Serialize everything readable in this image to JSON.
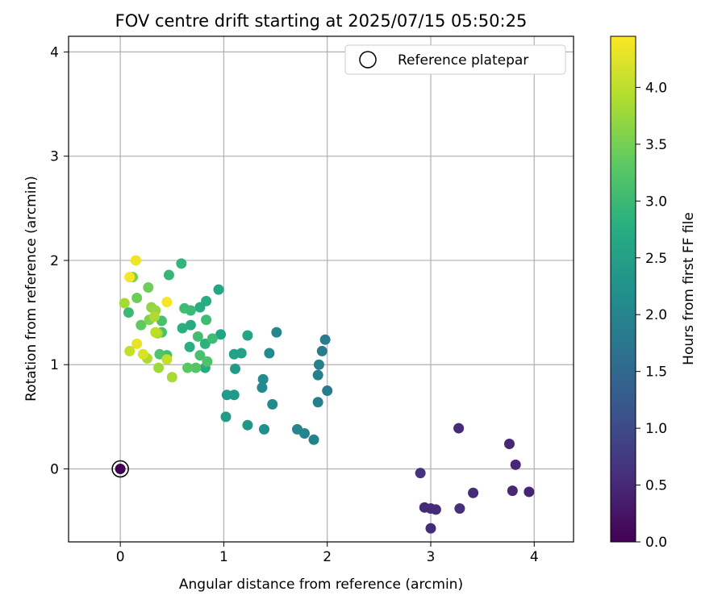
{
  "chart_data": {
    "type": "scatter",
    "title": "FOV centre drift starting at 2025/07/15 05:50:25",
    "xlabel": "Angular distance from reference (arcmin)",
    "ylabel": "Rotation from reference (arcmin)",
    "xlim": [
      -0.5,
      4.38
    ],
    "ylim": [
      -0.7,
      4.15
    ],
    "xticks": [
      0,
      1,
      2,
      3,
      4
    ],
    "yticks": [
      0,
      1,
      2,
      3,
      4
    ],
    "grid": true,
    "legend": {
      "placement": "top-right",
      "entries": [
        "Reference platepar"
      ]
    },
    "colorbar": {
      "label": "Hours from first FF file",
      "colormap": "viridis",
      "range": [
        0.0,
        4.45
      ],
      "ticks": [
        "0.0",
        "0.5",
        "1.0",
        "1.5",
        "2.0",
        "2.5",
        "3.0",
        "3.5",
        "4.0"
      ]
    },
    "reference_point": {
      "x": 0.0,
      "y": 0.0,
      "color": "#440154"
    },
    "series": [
      {
        "points": [
          [
            3.27,
            0.39,
            0.55
          ],
          [
            3.76,
            0.24,
            0.5
          ],
          [
            3.82,
            0.04,
            0.5
          ],
          [
            2.9,
            -0.04,
            0.65
          ],
          [
            3.41,
            -0.23,
            0.55
          ],
          [
            3.79,
            -0.21,
            0.5
          ],
          [
            3.95,
            -0.22,
            0.45
          ],
          [
            2.94,
            -0.37,
            0.55
          ],
          [
            3.0,
            -0.38,
            0.55
          ],
          [
            3.05,
            -0.39,
            0.55
          ],
          [
            3.28,
            -0.38,
            0.6
          ],
          [
            3.0,
            -0.57,
            0.55
          ],
          [
            1.98,
            1.24,
            1.85
          ],
          [
            1.95,
            1.13,
            1.85
          ],
          [
            1.92,
            1.0,
            1.9
          ],
          [
            1.91,
            0.9,
            1.9
          ],
          [
            2.0,
            0.75,
            1.85
          ],
          [
            1.91,
            0.64,
            1.9
          ],
          [
            1.87,
            0.28,
            1.95
          ],
          [
            1.78,
            0.34,
            2.0
          ],
          [
            1.71,
            0.38,
            2.0
          ],
          [
            1.51,
            1.31,
            2.05
          ],
          [
            1.44,
            1.11,
            2.1
          ],
          [
            1.38,
            0.86,
            2.1
          ],
          [
            1.37,
            0.78,
            2.1
          ],
          [
            1.47,
            0.62,
            2.15
          ],
          [
            1.39,
            0.38,
            2.2
          ],
          [
            1.23,
            0.42,
            2.35
          ],
          [
            1.02,
            0.5,
            2.45
          ],
          [
            1.03,
            0.71,
            2.45
          ],
          [
            1.1,
            0.71,
            2.4
          ],
          [
            1.11,
            0.96,
            2.45
          ],
          [
            1.1,
            1.1,
            2.55
          ],
          [
            1.17,
            1.11,
            2.55
          ],
          [
            1.23,
            1.28,
            2.6
          ],
          [
            0.97,
            1.29,
            2.6
          ],
          [
            0.95,
            1.72,
            2.65
          ],
          [
            0.83,
            1.61,
            2.75
          ],
          [
            0.77,
            1.55,
            2.75
          ],
          [
            0.68,
            1.38,
            2.7
          ],
          [
            0.6,
            1.35,
            2.8
          ],
          [
            0.59,
            1.97,
            2.9
          ],
          [
            0.47,
            1.86,
            2.95
          ],
          [
            0.67,
            1.17,
            2.8
          ],
          [
            0.82,
            0.97,
            2.75
          ],
          [
            0.82,
            1.2,
            2.85
          ],
          [
            0.89,
            1.25,
            3.05
          ],
          [
            0.83,
            1.43,
            3.05
          ],
          [
            0.68,
            1.52,
            3.0
          ],
          [
            0.62,
            1.54,
            3.05
          ],
          [
            0.75,
            1.27,
            3.1
          ],
          [
            0.77,
            1.09,
            3.15
          ],
          [
            0.84,
            1.03,
            3.2
          ],
          [
            0.73,
            0.97,
            3.25
          ],
          [
            0.65,
            0.97,
            3.3
          ],
          [
            0.4,
            1.42,
            3.15
          ],
          [
            0.4,
            1.31,
            3.15
          ],
          [
            0.45,
            1.09,
            3.1
          ],
          [
            0.38,
            1.1,
            3.2
          ],
          [
            0.08,
            1.5,
            3.0
          ],
          [
            0.2,
            1.38,
            3.35
          ],
          [
            0.27,
            1.74,
            3.45
          ],
          [
            0.12,
            1.84,
            3.55
          ],
          [
            0.16,
            1.64,
            3.45
          ],
          [
            0.28,
            1.43,
            3.6
          ],
          [
            0.3,
            1.55,
            3.7
          ],
          [
            0.34,
            1.52,
            3.75
          ],
          [
            0.37,
            0.97,
            3.8
          ],
          [
            0.5,
            0.88,
            3.85
          ],
          [
            0.36,
            1.3,
            3.85
          ],
          [
            0.04,
            1.59,
            3.85
          ],
          [
            0.26,
            1.06,
            3.9
          ],
          [
            0.33,
            1.46,
            3.9
          ],
          [
            0.34,
            1.31,
            4.0
          ],
          [
            0.45,
            1.05,
            4.05
          ],
          [
            0.09,
            1.13,
            4.05
          ],
          [
            0.22,
            1.1,
            4.2
          ],
          [
            0.16,
            1.2,
            4.3
          ],
          [
            0.15,
            2.0,
            4.35
          ],
          [
            0.09,
            1.84,
            4.4
          ],
          [
            0.45,
            1.6,
            4.4
          ]
        ]
      }
    ]
  }
}
